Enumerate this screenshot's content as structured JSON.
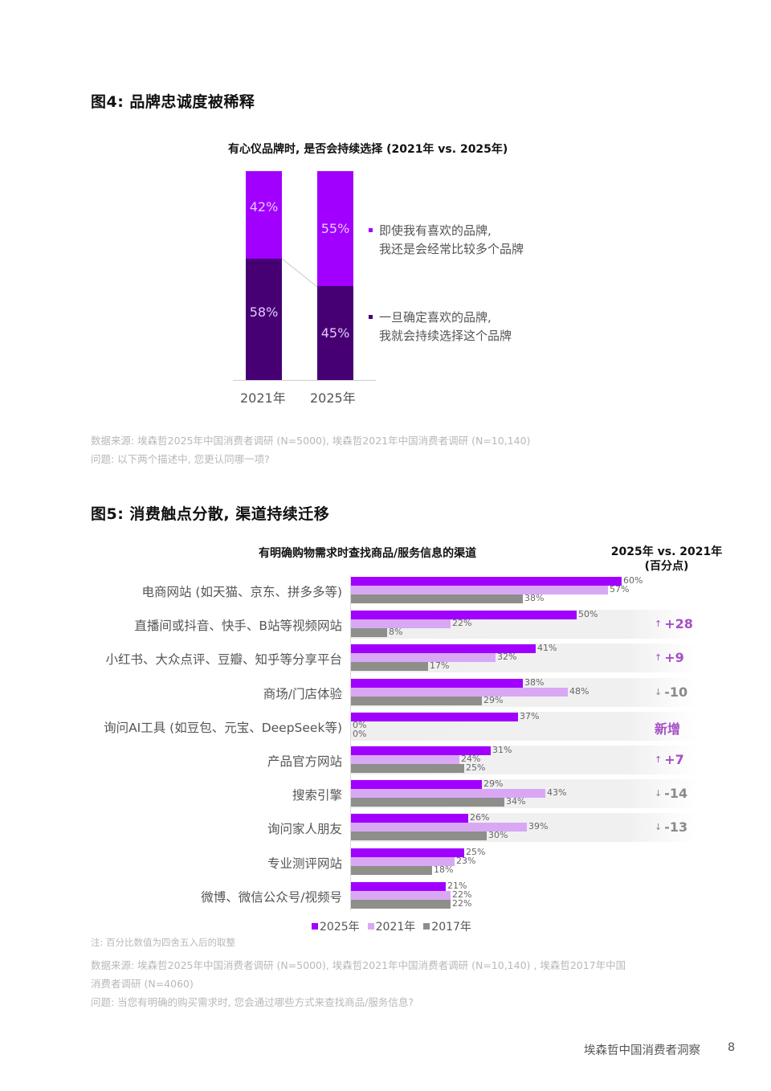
{
  "figure4": {
    "title": "图4: 品牌忠诚度被稀释",
    "chart_title": "有心仪品牌时, 是否会持续选择 (2021年 vs. 2025年)",
    "bars": [
      {
        "year": "2021年",
        "top_pct": "42%",
        "bottom_pct": "58%"
      },
      {
        "year": "2025年",
        "top_pct": "55%",
        "bottom_pct": "45%"
      }
    ],
    "legend": [
      {
        "line1": "即使我有喜欢的品牌,",
        "line2": "我还是会经常比较多个品牌",
        "color": "#a100ff"
      },
      {
        "line1": "一旦确定喜欢的品牌,",
        "line2": "我就会持续选择这个品牌",
        "color": "#460073"
      }
    ],
    "source": "数据来源: 埃森哲2025年中国消费者调研 (N=5000), 埃森哲2021年中国消费者调研 (N=10,140)",
    "question": "问题: 以下两个描述中, 您更认同哪一项?"
  },
  "figure5": {
    "title": "图5: 消费触点分散, 渠道持续迁移",
    "chart_title": "有明确购物需求时查找商品/服务信息的渠道",
    "delta_header_line1": "2025年 vs. 2021年",
    "delta_header_line2": "(百分点)",
    "rows": [
      {
        "label": "电商网站 (如天猫、京东、拼多多等)",
        "v2025": "60%",
        "v2021": "57%",
        "v2017": "38%",
        "delta": "",
        "arrow": "",
        "band": false
      },
      {
        "label": "直播间或抖音、快手、B站等视频网站",
        "v2025": "50%",
        "v2021": "22%",
        "v2017": "8%",
        "delta": "+28",
        "arrow": "↑",
        "band": true,
        "delta_color": "#a64fc4"
      },
      {
        "label": "小红书、大众点评、豆瓣、知乎等分享平台",
        "v2025": "41%",
        "v2021": "32%",
        "v2017": "17%",
        "delta": "+9",
        "arrow": "↑",
        "band": true,
        "delta_color": "#a64fc4"
      },
      {
        "label": "商场/门店体验",
        "v2025": "38%",
        "v2021": "48%",
        "v2017": "29%",
        "delta": "-10",
        "arrow": "↓",
        "band": true,
        "delta_color": "#8a8a8a"
      },
      {
        "label": "询问AI工具 (如豆包、元宝、DeepSeek等)",
        "v2025": "37%",
        "v2021": "0%",
        "v2017": "0%",
        "delta": "新增",
        "arrow": "",
        "band": true,
        "delta_color": "#a64fc4"
      },
      {
        "label": "产品官方网站",
        "v2025": "31%",
        "v2021": "24%",
        "v2017": "25%",
        "delta": "+7",
        "arrow": "↑",
        "band": true,
        "delta_color": "#a64fc4"
      },
      {
        "label": "搜索引擎",
        "v2025": "29%",
        "v2021": "43%",
        "v2017": "34%",
        "delta": "-14",
        "arrow": "↓",
        "band": true,
        "delta_color": "#8a8a8a"
      },
      {
        "label": "询问家人朋友",
        "v2025": "26%",
        "v2021": "39%",
        "v2017": "30%",
        "delta": "-13",
        "arrow": "↓",
        "band": true,
        "delta_color": "#8a8a8a"
      },
      {
        "label": "专业测评网站",
        "v2025": "25%",
        "v2021": "23%",
        "v2017": "18%",
        "delta": "",
        "arrow": "",
        "band": false
      },
      {
        "label": "微博、微信公众号/视频号",
        "v2025": "21%",
        "v2021": "22%",
        "v2017": "22%",
        "delta": "",
        "arrow": "",
        "band": false
      }
    ],
    "legend": [
      {
        "label": "2025年",
        "color": "#a100ff"
      },
      {
        "label": "2021年",
        "color": "#d8a8f5"
      },
      {
        "label": "2017年",
        "color": "#8e8e8a"
      }
    ],
    "note": "注: 百分比数值为四舍五入后的取整",
    "source_line1": "数据来源: 埃森哲2025年中国消费者调研 (N=5000), 埃森哲2021年中国消费者调研 (N=10,140) , 埃森哲2017年中国",
    "source_line2": "消费者调研 (N=4060)",
    "question": "问题: 当您有明确的购买需求时, 您会通过哪些方式来查找商品/服务信息?"
  },
  "footer": {
    "publication": "埃森哲中国消费者洞察",
    "page_number": "8"
  },
  "chart_data": [
    {
      "type": "bar",
      "subtype": "stacked-100",
      "title": "有心仪品牌时, 是否会持续选择 (2021年 vs. 2025年)",
      "categories": [
        "2021年",
        "2025年"
      ],
      "series": [
        {
          "name": "一旦确定喜欢的品牌, 我就会持续选择这个品牌",
          "values": [
            58,
            45
          ]
        },
        {
          "name": "即使我有喜欢的品牌, 我还是会经常比较多个品牌",
          "values": [
            42,
            55
          ]
        }
      ],
      "xlabel": "",
      "ylabel": "",
      "ylim": [
        0,
        100
      ],
      "legend_position": "right",
      "grid": false
    },
    {
      "type": "bar",
      "orientation": "horizontal",
      "title": "有明确购物需求时查找商品/服务信息的渠道",
      "categories": [
        "电商网站 (如天猫、京东、拼多多等)",
        "直播间或抖音、快手、B站等视频网站",
        "小红书、大众点评、豆瓣、知乎等分享平台",
        "商场/门店体验",
        "询问AI工具 (如豆包、元宝、DeepSeek等)",
        "产品官方网站",
        "搜索引擎",
        "询问家人朋友",
        "专业测评网站",
        "微博、微信公众号/视频号"
      ],
      "series": [
        {
          "name": "2025年",
          "values": [
            60,
            50,
            41,
            38,
            37,
            31,
            29,
            26,
            25,
            21
          ]
        },
        {
          "name": "2021年",
          "values": [
            57,
            22,
            32,
            48,
            0,
            24,
            43,
            39,
            23,
            22
          ]
        },
        {
          "name": "2017年",
          "values": [
            38,
            8,
            17,
            29,
            0,
            25,
            34,
            30,
            18,
            22
          ]
        }
      ],
      "annotations": {
        "header": "2025年 vs. 2021年 (百分点)",
        "deltas": [
          null,
          "+28",
          "+9",
          "-10",
          "新增",
          "+7",
          "-14",
          "-13",
          null,
          null
        ]
      },
      "unit": "%",
      "xlim": [
        0,
        100
      ],
      "legend_position": "bottom",
      "grid": false
    }
  ]
}
